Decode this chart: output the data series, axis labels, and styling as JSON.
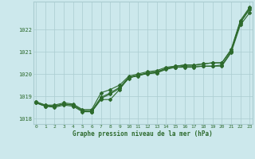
{
  "xlabel": "Graphe pression niveau de la mer (hPa)",
  "background_color": "#cce8ec",
  "grid_color": "#aaccd0",
  "line_color": "#2d6a2d",
  "x": [
    0,
    1,
    2,
    3,
    4,
    5,
    6,
    7,
    8,
    9,
    10,
    11,
    12,
    13,
    14,
    15,
    16,
    17,
    18,
    19,
    20,
    21,
    22,
    23
  ],
  "series1": [
    1018.7,
    1018.55,
    1018.55,
    1018.65,
    1018.6,
    1018.35,
    1018.3,
    1018.85,
    1018.85,
    1019.3,
    1019.85,
    1019.9,
    1020.05,
    1020.05,
    1020.25,
    1020.3,
    1020.35,
    1020.35,
    1020.35,
    1020.35,
    1020.4,
    1021.0,
    1022.3,
    1022.9
  ],
  "series2": [
    1018.7,
    1018.55,
    1018.5,
    1018.6,
    1018.55,
    1018.3,
    1018.3,
    1018.9,
    1019.1,
    1019.35,
    1019.8,
    1019.95,
    1020.0,
    1020.05,
    1020.2,
    1020.3,
    1020.3,
    1020.3,
    1020.35,
    1020.35,
    1020.35,
    1020.95,
    1022.2,
    1022.75
  ],
  "series3": [
    1018.75,
    1018.6,
    1018.55,
    1018.65,
    1018.6,
    1018.35,
    1018.35,
    1018.95,
    1019.15,
    1019.4,
    1019.85,
    1019.95,
    1020.05,
    1020.1,
    1020.25,
    1020.35,
    1020.4,
    1020.4,
    1020.45,
    1020.5,
    1020.5,
    1021.05,
    1022.35,
    1022.95
  ],
  "series4": [
    1018.75,
    1018.6,
    1018.6,
    1018.7,
    1018.65,
    1018.4,
    1018.4,
    1019.15,
    1019.3,
    1019.5,
    1019.9,
    1020.0,
    1020.1,
    1020.15,
    1020.3,
    1020.35,
    1020.4,
    1020.4,
    1020.45,
    1020.5,
    1020.5,
    1021.1,
    1022.4,
    1023.0
  ],
  "ylim": [
    1017.75,
    1023.25
  ],
  "yticks": [
    1018,
    1019,
    1020,
    1021,
    1022
  ],
  "xticks": [
    0,
    1,
    2,
    3,
    4,
    5,
    6,
    7,
    8,
    9,
    10,
    11,
    12,
    13,
    14,
    15,
    16,
    17,
    18,
    19,
    20,
    21,
    22,
    23
  ]
}
